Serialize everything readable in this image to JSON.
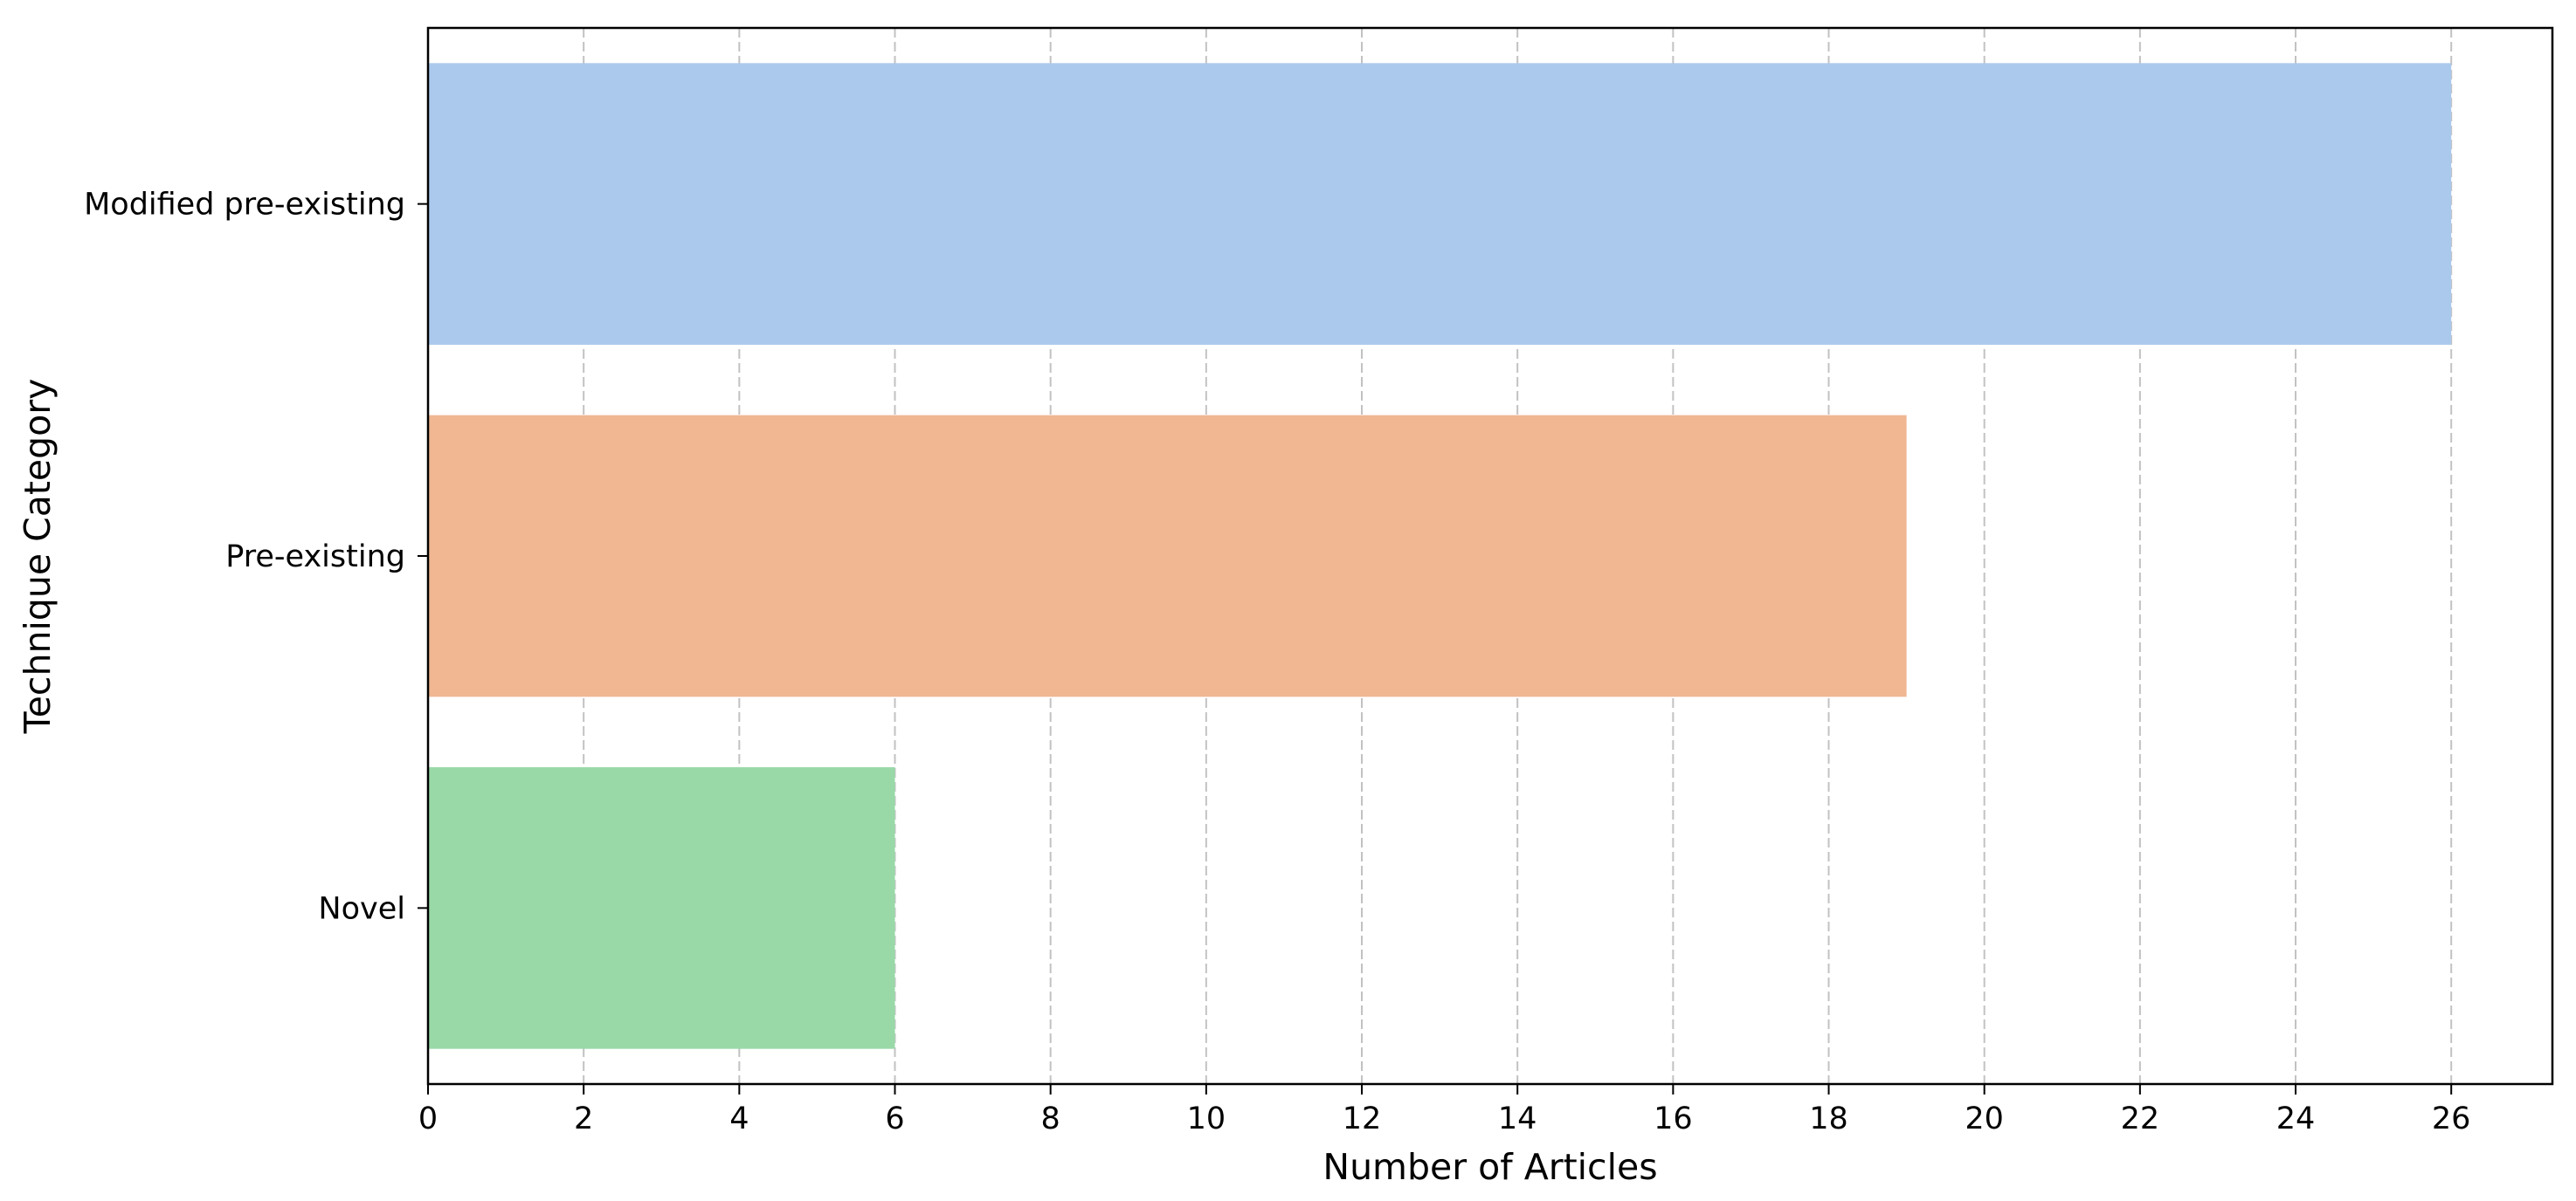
{
  "chart_data": {
    "type": "bar",
    "orientation": "horizontal",
    "title": "",
    "xlabel": "Number of Articles",
    "ylabel": "Technique Category",
    "categories": [
      "Modified pre-existing",
      "Pre-existing",
      "Novel"
    ],
    "values": [
      26,
      19,
      6
    ],
    "colors": [
      "#abc9ec",
      "#f0b792",
      "#99d9a8"
    ],
    "xlim": [
      0,
      27.3
    ],
    "xticks": [
      0,
      2,
      4,
      6,
      8,
      10,
      12,
      14,
      16,
      18,
      20,
      22,
      24,
      26
    ],
    "grid": {
      "axis": "x",
      "style": "dashed",
      "color": "#c2c2c2"
    },
    "legend": "none"
  }
}
